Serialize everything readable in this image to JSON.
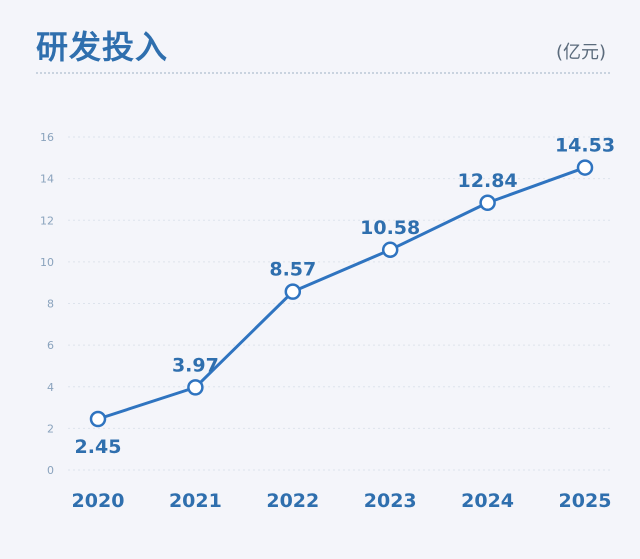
{
  "chart_data": {
    "type": "line",
    "title": "研发投入",
    "unit": "(亿元)",
    "categories": [
      "2020",
      "2021",
      "2022",
      "2023",
      "2024",
      "2025"
    ],
    "values": [
      2.45,
      3.97,
      8.57,
      10.58,
      12.84,
      14.53
    ],
    "value_labels": [
      "2.45",
      "3.97",
      "8.57",
      "10.58",
      "12.84",
      "14.53"
    ],
    "yticks": [
      "0",
      "2",
      "4",
      "6",
      "8",
      "10",
      "12",
      "14",
      "16"
    ],
    "ylim": [
      0,
      16
    ],
    "grid": true,
    "line_color": "#2f74c0"
  }
}
